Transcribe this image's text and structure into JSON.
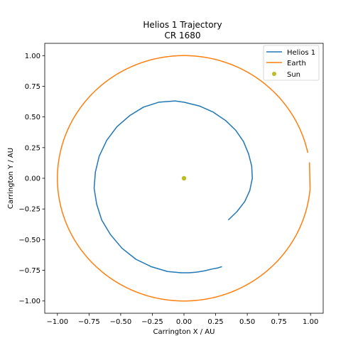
{
  "chart_data": {
    "type": "line",
    "title": "Helios 1 Trajectory",
    "subtitle": "CR 1680",
    "xlabel": "Carrington X / AU",
    "ylabel": "Carrington Y / AU",
    "xlim": [
      -1.1,
      1.1
    ],
    "ylim": [
      -1.1,
      1.1
    ],
    "xticks": [
      -1.0,
      -0.75,
      -0.5,
      -0.25,
      0.0,
      0.25,
      0.5,
      0.75,
      1.0
    ],
    "yticks": [
      -1.0,
      -0.75,
      -0.5,
      -0.25,
      0.0,
      0.25,
      0.5,
      0.75,
      1.0
    ],
    "xtick_labels": [
      "−1.00",
      "−0.75",
      "−0.50",
      "−0.25",
      "0.00",
      "0.25",
      "0.50",
      "0.75",
      "1.00"
    ],
    "ytick_labels": [
      "−1.00",
      "−0.75",
      "−0.50",
      "−0.25",
      "0.00",
      "0.25",
      "0.50",
      "0.75",
      "1.00"
    ],
    "grid": false,
    "legend_position": "top-right",
    "series": [
      {
        "name": "Helios 1",
        "kind": "line",
        "color": "#1f77b4",
        "x": [
          0.35,
          0.42,
          0.48,
          0.52,
          0.54,
          0.535,
          0.51,
          0.47,
          0.41,
          0.33,
          0.23,
          0.12,
          0.0,
          -0.07,
          -0.2,
          -0.32,
          -0.43,
          -0.53,
          -0.61,
          -0.67,
          -0.7,
          -0.71,
          -0.69,
          -0.65,
          -0.58,
          -0.49,
          -0.38,
          -0.26,
          -0.13,
          -0.02,
          0.04,
          0.1,
          0.16,
          0.22,
          0.27,
          0.3
        ],
        "y": [
          -0.34,
          -0.27,
          -0.19,
          -0.1,
          0.0,
          0.1,
          0.2,
          0.3,
          0.39,
          0.47,
          0.54,
          0.59,
          0.62,
          0.63,
          0.62,
          0.58,
          0.51,
          0.42,
          0.31,
          0.18,
          0.05,
          -0.08,
          -0.21,
          -0.34,
          -0.46,
          -0.57,
          -0.66,
          -0.72,
          -0.76,
          -0.77,
          -0.77,
          -0.765,
          -0.755,
          -0.74,
          -0.73,
          -0.72
        ]
      },
      {
        "name": "Earth",
        "kind": "line",
        "color": "#ff7f0e",
        "circle": {
          "radius": 1.0,
          "gap_start_deg": 7.5,
          "gap_end_deg": 12.0,
          "end_y": 0.13
        }
      },
      {
        "name": "Sun",
        "kind": "scatter",
        "color": "#bcbd22",
        "x": [
          0.0
        ],
        "y": [
          0.0
        ]
      }
    ]
  }
}
